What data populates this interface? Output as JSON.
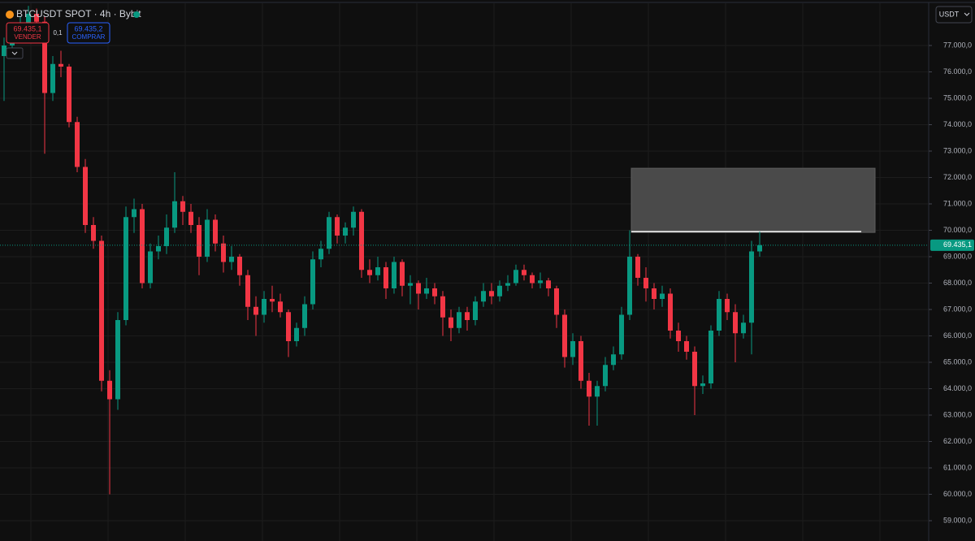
{
  "header": {
    "symbol": "BTCUSDT SPOT · 4h · Bybit"
  },
  "trade": {
    "sell_price": "69.435,1",
    "sell_label": "VENDER",
    "quantity": "0,1",
    "buy_price": "69.435,2",
    "buy_label": "COMPRAR"
  },
  "currency": "USDT",
  "chart_data": {
    "type": "candlestick",
    "up_color": "#089981",
    "down_color": "#f23645",
    "ylim": [
      58231,
      78723
    ],
    "yticks": [
      {
        "value": 59000,
        "label": "59.000,0"
      },
      {
        "value": 60000,
        "label": "60.000,0"
      },
      {
        "value": 61000,
        "label": "61.000,0"
      },
      {
        "value": 62000,
        "label": "62.000,0"
      },
      {
        "value": 63000,
        "label": "63.000,0"
      },
      {
        "value": 64000,
        "label": "64.000,0"
      },
      {
        "value": 65000,
        "label": "65.000,0"
      },
      {
        "value": 66000,
        "label": "66.000,0"
      },
      {
        "value": 67000,
        "label": "67.000,0"
      },
      {
        "value": 68000,
        "label": "68.000,0"
      },
      {
        "value": 69000,
        "label": "69.000,0"
      },
      {
        "value": 70000,
        "label": "70.000,0"
      },
      {
        "value": 71000,
        "label": "71.000,0"
      },
      {
        "value": 72000,
        "label": "72.000,0"
      },
      {
        "value": 73000,
        "label": "73.000,0"
      },
      {
        "value": 74000,
        "label": "74.000,0"
      },
      {
        "value": 75000,
        "label": "75.000,0"
      },
      {
        "value": 76000,
        "label": "76.000,0"
      },
      {
        "value": 77000,
        "label": "77.000,0"
      }
    ],
    "grid": true,
    "last_price": {
      "value": 69435.1,
      "label": "69.435,1"
    },
    "zone": {
      "top": 72350,
      "bottom": 69920,
      "level": 69950
    },
    "ohlc": [
      [
        76600,
        77300,
        74900,
        77000
      ],
      [
        77000,
        77600,
        76700,
        77300
      ],
      [
        77300,
        78100,
        77100,
        77800
      ],
      [
        77800,
        78500,
        77600,
        78200
      ],
      [
        78200,
        78400,
        77600,
        77900
      ],
      [
        77900,
        78100,
        72900,
        75200
      ],
      [
        75200,
        76600,
        74900,
        76300
      ],
      [
        76300,
        76800,
        75800,
        76200
      ],
      [
        76200,
        76300,
        73900,
        74100
      ],
      [
        74100,
        74300,
        72200,
        72400
      ],
      [
        72400,
        72700,
        69900,
        70200
      ],
      [
        70200,
        70500,
        69300,
        69600
      ],
      [
        69600,
        69800,
        63900,
        64300
      ],
      [
        64300,
        64700,
        60000,
        63600
      ],
      [
        63600,
        66900,
        63200,
        66600
      ],
      [
        66600,
        70900,
        66400,
        70500
      ],
      [
        70500,
        71200,
        69900,
        70800
      ],
      [
        70800,
        71000,
        67800,
        68000
      ],
      [
        68000,
        69500,
        67800,
        69200
      ],
      [
        69200,
        69800,
        68900,
        69400
      ],
      [
        69400,
        70600,
        69100,
        70100
      ],
      [
        70100,
        72200,
        69900,
        71100
      ],
      [
        71100,
        71300,
        70200,
        70700
      ],
      [
        70700,
        71000,
        69900,
        70200
      ],
      [
        70200,
        70500,
        68300,
        69000
      ],
      [
        69000,
        70800,
        68800,
        70400
      ],
      [
        70400,
        70600,
        69200,
        69500
      ],
      [
        69500,
        69800,
        68400,
        68800
      ],
      [
        68800,
        69400,
        68500,
        69000
      ],
      [
        69000,
        69100,
        67900,
        68300
      ],
      [
        68300,
        68500,
        66600,
        67100
      ],
      [
        67100,
        67500,
        66000,
        66800
      ],
      [
        66800,
        67700,
        66500,
        67400
      ],
      [
        67400,
        67900,
        66900,
        67300
      ],
      [
        67300,
        67600,
        66700,
        66900
      ],
      [
        66900,
        67000,
        65200,
        65800
      ],
      [
        65800,
        66500,
        65600,
        66300
      ],
      [
        66300,
        67500,
        66000,
        67200
      ],
      [
        67200,
        69200,
        67000,
        68900
      ],
      [
        68900,
        69600,
        68600,
        69300
      ],
      [
        69300,
        70700,
        69100,
        70500
      ],
      [
        70500,
        70600,
        69500,
        69800
      ],
      [
        69800,
        70300,
        69500,
        70100
      ],
      [
        70100,
        70900,
        69800,
        70700
      ],
      [
        70700,
        70800,
        68200,
        68500
      ],
      [
        68500,
        68900,
        68000,
        68300
      ],
      [
        68300,
        69000,
        68100,
        68600
      ],
      [
        68600,
        68800,
        67400,
        67800
      ],
      [
        67800,
        69000,
        67600,
        68800
      ],
      [
        68800,
        68900,
        67500,
        67900
      ],
      [
        67900,
        68300,
        67200,
        68000
      ],
      [
        68000,
        68100,
        67000,
        67600
      ],
      [
        67600,
        68200,
        67400,
        67800
      ],
      [
        67800,
        68000,
        67200,
        67500
      ],
      [
        67500,
        67700,
        66000,
        66700
      ],
      [
        66700,
        67000,
        65800,
        66300
      ],
      [
        66300,
        67100,
        66100,
        66900
      ],
      [
        66900,
        67100,
        66200,
        66600
      ],
      [
        66600,
        67500,
        66400,
        67300
      ],
      [
        67300,
        68000,
        67100,
        67700
      ],
      [
        67700,
        68000,
        67200,
        67500
      ],
      [
        67500,
        68100,
        67300,
        67900
      ],
      [
        67900,
        68300,
        67700,
        68000
      ],
      [
        68000,
        68700,
        67900,
        68500
      ],
      [
        68500,
        68700,
        68100,
        68300
      ],
      [
        68300,
        68400,
        67800,
        68000
      ],
      [
        68000,
        68400,
        67800,
        68100
      ],
      [
        68100,
        68200,
        67500,
        67800
      ],
      [
        67800,
        67900,
        66300,
        66800
      ],
      [
        66800,
        67000,
        64800,
        65200
      ],
      [
        65200,
        66100,
        64900,
        65800
      ],
      [
        65800,
        66000,
        64000,
        64300
      ],
      [
        64300,
        64600,
        62600,
        63700
      ],
      [
        63700,
        64300,
        62600,
        64100
      ],
      [
        64100,
        65200,
        63900,
        64900
      ],
      [
        64900,
        65600,
        64700,
        65300
      ],
      [
        65300,
        67100,
        65100,
        66800
      ],
      [
        66800,
        70000,
        66600,
        69000
      ],
      [
        69000,
        69100,
        67900,
        68200
      ],
      [
        68200,
        68600,
        67300,
        67800
      ],
      [
        67800,
        68000,
        67000,
        67400
      ],
      [
        67400,
        67900,
        67100,
        67600
      ],
      [
        67600,
        67800,
        65900,
        66200
      ],
      [
        66200,
        66500,
        65400,
        65800
      ],
      [
        65800,
        66000,
        65100,
        65400
      ],
      [
        65400,
        65600,
        63000,
        64100
      ],
      [
        64100,
        64500,
        63800,
        64200
      ],
      [
        64200,
        66400,
        64000,
        66200
      ],
      [
        66200,
        67700,
        66000,
        67400
      ],
      [
        67400,
        67600,
        66600,
        66900
      ],
      [
        66900,
        67200,
        65000,
        66100
      ],
      [
        66100,
        66800,
        65900,
        66500
      ],
      [
        66500,
        69600,
        65300,
        69200
      ],
      [
        69200,
        69950,
        69000,
        69435.1
      ]
    ]
  }
}
